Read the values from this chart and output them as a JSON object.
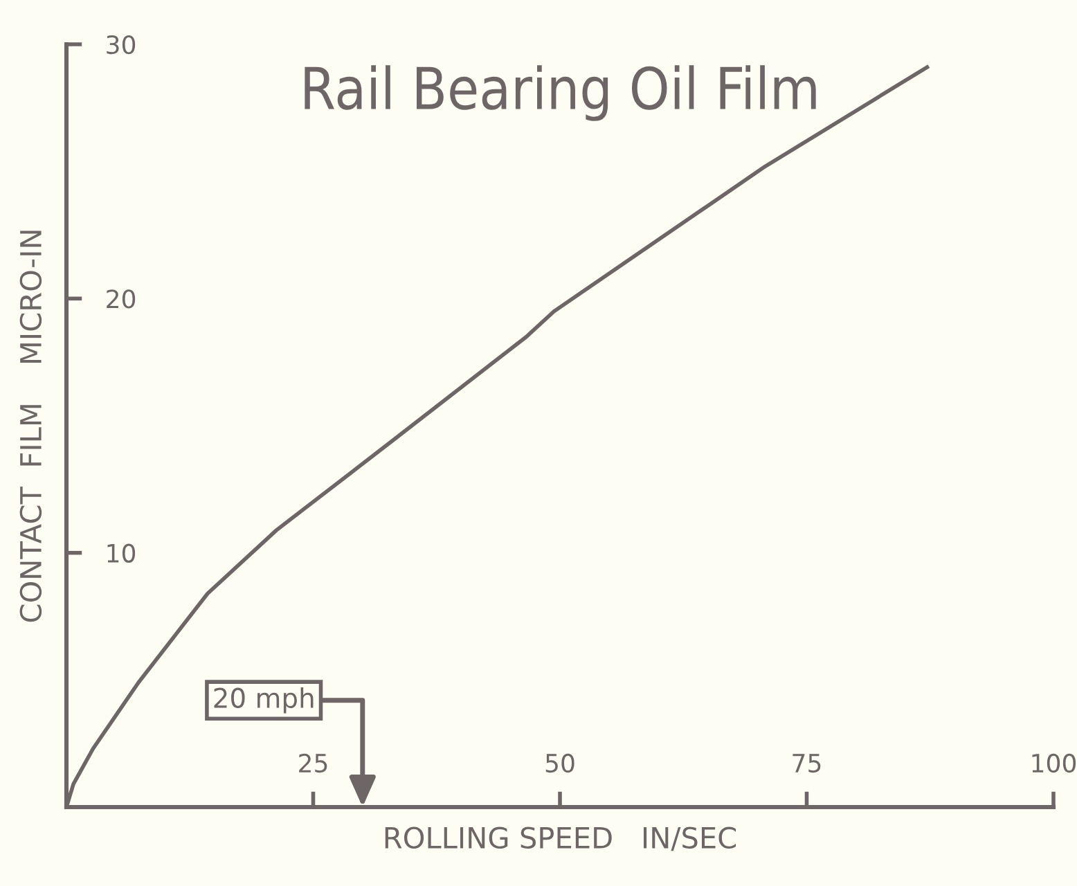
{
  "chart_data": {
    "type": "line",
    "title": "Rail Bearing Oil Film",
    "xlabel": "ROLLING SPEED   IN/SEC",
    "ylabel": "CONTACT  FILM    MICRO-IN",
    "x": [
      0,
      0.7,
      2.7,
      7.3,
      14.3,
      21.3,
      33,
      46.6,
      49.4,
      70.8,
      87.2
    ],
    "series": [
      {
        "color": "#6e6666",
        "values": [
          0,
          0.9,
          2.3,
          4.9,
          8.4,
          10.9,
          14.4,
          18.5,
          19.5,
          25.2,
          29.1
        ]
      }
    ],
    "ref_lines": [
      {
        "axis": "x",
        "value": 30,
        "label": "20 mph"
      }
    ],
    "xlim": [
      0,
      100
    ],
    "xticks": [
      {
        "value": 25,
        "label": "25"
      },
      {
        "value": 50,
        "label": "50"
      },
      {
        "value": 75,
        "label": "75"
      },
      {
        "value": 100,
        "label": "100"
      }
    ],
    "ylim": [
      0,
      30
    ],
    "yticks": [
      {
        "value": 10,
        "label": "10"
      },
      {
        "value": 20,
        "label": "20"
      },
      {
        "value": 30,
        "label": "30"
      }
    ],
    "grid": false,
    "legend": false,
    "marker": "none",
    "line_style": "solid"
  }
}
